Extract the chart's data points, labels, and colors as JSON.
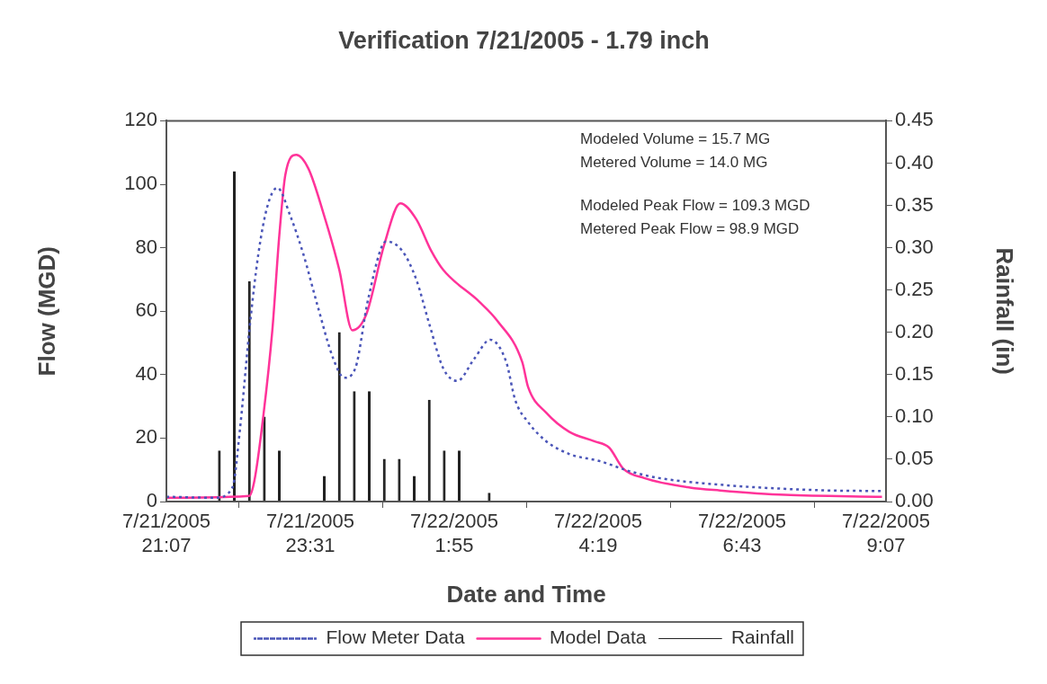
{
  "chart_data": {
    "type": "line",
    "title": "Verification 7/21/2005 - 1.79 inch",
    "xlabel": "Date and Time",
    "ylabel": "Flow (MGD)",
    "y2label": "Rainfall (in)",
    "xlim": [
      "2005-07-21T21:07",
      "2005-07-22T09:07"
    ],
    "xticks": [
      {
        "value": "2005-07-21T21:07",
        "label": "7/21/2005 21:07"
      },
      {
        "value": "2005-07-21T23:31",
        "label": "7/21/2005 23:31"
      },
      {
        "value": "2005-07-22T01:55",
        "label": "7/22/2005 1:55"
      },
      {
        "value": "2005-07-22T04:19",
        "label": "7/22/2005 4:19"
      },
      {
        "value": "2005-07-22T06:43",
        "label": "7/22/2005 6:43"
      },
      {
        "value": "2005-07-22T09:07",
        "label": "7/22/2005 9:07"
      }
    ],
    "ylim": [
      0,
      120
    ],
    "yticks": [
      0,
      20,
      40,
      60,
      80,
      100,
      120
    ],
    "y2lim": [
      0,
      0.45
    ],
    "y2ticks": [
      {
        "value": 0,
        "label": "0.00"
      },
      {
        "value": 0.05,
        "label": "0.05"
      },
      {
        "value": 0.1,
        "label": "0.10"
      },
      {
        "value": 0.15,
        "label": "0.15"
      },
      {
        "value": 0.2,
        "label": "0.20"
      },
      {
        "value": 0.25,
        "label": "0.25"
      },
      {
        "value": 0.3,
        "label": "0.30"
      },
      {
        "value": 0.35,
        "label": "0.35"
      },
      {
        "value": 0.4,
        "label": "0.40"
      },
      {
        "value": 0.45,
        "label": "0.45"
      }
    ],
    "legend": "bottom",
    "series": [
      {
        "name": "Flow Meter Data",
        "color": "#4a55b8",
        "line_style": "dotted",
        "x": [
          "2005-07-21T21:07",
          "2005-07-21T21:56",
          "2005-07-21T22:13",
          "2005-07-21T22:21",
          "2005-07-21T22:30",
          "2005-07-21T22:39",
          "2005-07-21T22:48",
          "2005-07-21T22:58",
          "2005-07-21T23:11",
          "2005-07-21T23:24",
          "2005-07-21T23:38",
          "2005-07-21T23:54",
          "2005-07-22T00:05",
          "2005-07-22T00:16",
          "2005-07-22T00:29",
          "2005-07-22T00:47",
          "2005-07-22T01:03",
          "2005-07-22T01:17",
          "2005-07-22T01:30",
          "2005-07-22T01:44",
          "2005-07-22T01:58",
          "2005-07-22T02:15",
          "2005-07-22T02:31",
          "2005-07-22T02:47",
          "2005-07-22T02:56",
          "2005-07-22T03:09",
          "2005-07-22T03:27",
          "2005-07-22T03:50",
          "2005-07-22T04:21",
          "2005-07-22T04:51",
          "2005-07-22T05:20",
          "2005-07-22T06:21",
          "2005-07-22T07:57",
          "2005-07-22T09:03"
        ],
        "values": [
          1.5,
          1.2,
          4.4,
          24,
          54,
          78,
          93,
          98.9,
          90,
          78,
          62,
          45,
          39,
          42,
          64,
          82,
          79,
          70,
          56,
          42,
          38,
          45,
          51,
          44,
          32,
          25,
          19,
          15,
          12.7,
          9.5,
          7.4,
          5.3,
          3.6,
          3.3
        ]
      },
      {
        "name": "Model Data",
        "color": "#ff3399",
        "line_style": "solid",
        "x": [
          "2005-07-21T21:07",
          "2005-07-21T22:30",
          "2005-07-21T22:35",
          "2005-07-21T22:44",
          "2005-07-21T22:53",
          "2005-07-21T23:00",
          "2005-07-21T23:06",
          "2005-07-21T23:17",
          "2005-07-21T23:29",
          "2005-07-21T23:44",
          "2005-07-22T00:00",
          "2005-07-22T00:13",
          "2005-07-22T00:27",
          "2005-07-22T00:45",
          "2005-07-22T01:01",
          "2005-07-22T01:17",
          "2005-07-22T01:32",
          "2005-07-22T01:44",
          "2005-07-22T02:20",
          "2005-07-22T02:38",
          "2005-07-22T03:03",
          "2005-07-22T03:09",
          "2005-07-22T03:27",
          "2005-07-22T03:50",
          "2005-07-22T04:15",
          "2005-07-22T04:30",
          "2005-07-22T04:44",
          "2005-07-22T05:05",
          "2005-07-22T05:51",
          "2005-07-22T06:21",
          "2005-07-22T07:26",
          "2005-07-22T09:03"
        ],
        "values": [
          1.2,
          1.8,
          6.5,
          27,
          54,
          84,
          103,
          109.3,
          105,
          91,
          73,
          54,
          59,
          81,
          94,
          89,
          79,
          73,
          63,
          57,
          44,
          36,
          28,
          22,
          19,
          17,
          10.4,
          7.4,
          4.4,
          3.5,
          2.1,
          1.5
        ]
      },
      {
        "name": "Rainfall",
        "type": "bar",
        "axis": "y2",
        "color": "#222222",
        "x": [
          "2005-07-21T22:00",
          "2005-07-21T22:15",
          "2005-07-21T22:30",
          "2005-07-21T22:45",
          "2005-07-21T23:00",
          "2005-07-21T23:45",
          "2005-07-22T00:00",
          "2005-07-22T00:15",
          "2005-07-22T00:30",
          "2005-07-22T00:45",
          "2005-07-22T01:00",
          "2005-07-22T01:15",
          "2005-07-22T01:30",
          "2005-07-22T01:45",
          "2005-07-22T02:00",
          "2005-07-22T02:30"
        ],
        "values": [
          0.06,
          0.39,
          0.26,
          0.1,
          0.06,
          0.03,
          0.2,
          0.13,
          0.13,
          0.05,
          0.05,
          0.03,
          0.12,
          0.06,
          0.06,
          0.01
        ]
      }
    ],
    "annotations": [
      "Modeled Volume = 15.7 MG",
      "Metered Volume = 14.0 MG",
      "Modeled Peak Flow = 109.3 MGD",
      "Metered Peak Flow = 98.9 MGD"
    ]
  }
}
